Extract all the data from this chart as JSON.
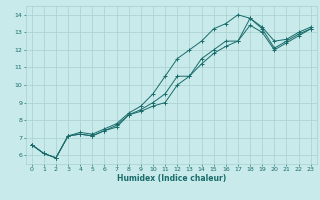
{
  "xlabel": "Humidex (Indice chaleur)",
  "ylabel": "",
  "bg_color": "#c8eaea",
  "line_color": "#1a6b6b",
  "grid_color": "#a8d0d0",
  "xlim": [
    -0.5,
    23.5
  ],
  "ylim": [
    5.5,
    14.5
  ],
  "xticks": [
    0,
    1,
    2,
    3,
    4,
    5,
    6,
    7,
    8,
    9,
    10,
    11,
    12,
    13,
    14,
    15,
    16,
    17,
    18,
    19,
    20,
    21,
    22,
    23
  ],
  "yticks": [
    6,
    7,
    8,
    9,
    10,
    11,
    12,
    13,
    14
  ],
  "line1_x": [
    0,
    1,
    2,
    3,
    4,
    5,
    6,
    7,
    8,
    9,
    10,
    11,
    12,
    13,
    14,
    15,
    16,
    17,
    18,
    19,
    20,
    21,
    22,
    23
  ],
  "line1_y": [
    6.6,
    6.1,
    5.85,
    7.1,
    7.3,
    7.2,
    7.5,
    7.8,
    8.4,
    8.8,
    9.5,
    10.5,
    11.5,
    12.0,
    12.5,
    13.2,
    13.5,
    14.0,
    13.8,
    13.3,
    12.5,
    12.6,
    13.0,
    13.3
  ],
  "line2_x": [
    0,
    1,
    2,
    3,
    4,
    5,
    6,
    7,
    8,
    9,
    10,
    11,
    12,
    13,
    14,
    15,
    16,
    17,
    18,
    19,
    20,
    21,
    22,
    23
  ],
  "line2_y": [
    6.6,
    6.1,
    5.85,
    7.1,
    7.2,
    7.1,
    7.4,
    7.6,
    8.3,
    8.6,
    9.0,
    9.5,
    10.5,
    10.5,
    11.5,
    12.0,
    12.5,
    12.5,
    13.8,
    13.2,
    12.1,
    12.5,
    12.9,
    13.2
  ],
  "line3_x": [
    0,
    1,
    2,
    3,
    4,
    5,
    6,
    7,
    8,
    9,
    10,
    11,
    12,
    13,
    14,
    15,
    16,
    17,
    18,
    19,
    20,
    21,
    22,
    23
  ],
  "line3_y": [
    6.6,
    6.1,
    5.85,
    7.1,
    7.2,
    7.1,
    7.4,
    7.7,
    8.3,
    8.5,
    8.8,
    9.0,
    10.0,
    10.5,
    11.2,
    11.8,
    12.2,
    12.5,
    13.4,
    13.0,
    12.0,
    12.4,
    12.8,
    13.2
  ]
}
